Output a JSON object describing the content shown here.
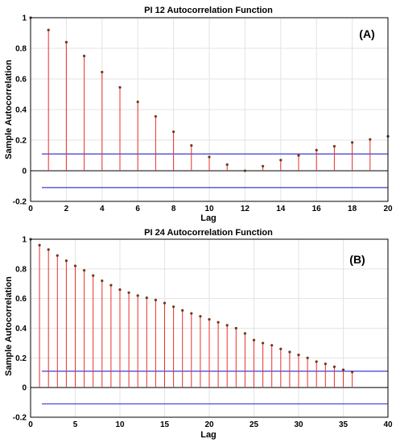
{
  "chart_data": [
    {
      "type": "stem",
      "title": "PI 12 Autocorrelation Function",
      "panel_label": "(A)",
      "xlabel": "Lag",
      "ylabel": "Sample Autocorrelation",
      "xlim": [
        0,
        20
      ],
      "ylim": [
        -0.2,
        1
      ],
      "xticks": [
        0,
        2,
        4,
        6,
        8,
        10,
        12,
        14,
        16,
        18,
        20
      ],
      "yticks": [
        -0.2,
        0,
        0.2,
        0.4,
        0.6,
        0.8,
        1
      ],
      "grid": true,
      "confidence_bounds": [
        0.11,
        -0.11
      ],
      "stem_color": "#e8302a",
      "marker_color": "#6b3a1a",
      "bound_color": "#3b3bd6",
      "lags": [
        0,
        1,
        2,
        3,
        4,
        5,
        6,
        7,
        8,
        9,
        10,
        11,
        12,
        13,
        14,
        15,
        16,
        17,
        18,
        19,
        20
      ],
      "values": [
        1.0,
        0.92,
        0.84,
        0.75,
        0.645,
        0.545,
        0.45,
        0.355,
        0.255,
        0.165,
        0.09,
        0.04,
        0.0,
        0.03,
        0.07,
        0.1,
        0.135,
        0.16,
        0.185,
        0.205,
        0.225
      ]
    },
    {
      "type": "stem",
      "title": "PI 24 Autocorrelation Function",
      "panel_label": "(B)",
      "xlabel": "Lag",
      "ylabel": "Sample Autocorrelation",
      "xlim": [
        0,
        40
      ],
      "ylim": [
        -0.2,
        1
      ],
      "xticks": [
        0,
        5,
        10,
        15,
        20,
        25,
        30,
        35,
        40
      ],
      "yticks": [
        -0.2,
        0,
        0.2,
        0.4,
        0.6,
        0.8,
        1
      ],
      "grid": true,
      "confidence_bounds": [
        0.11,
        -0.11
      ],
      "stem_color": "#e8302a",
      "marker_color": "#6b3a1a",
      "bound_color": "#3b3bd6",
      "lags": [
        0,
        1,
        2,
        3,
        4,
        5,
        6,
        7,
        8,
        9,
        10,
        11,
        12,
        13,
        14,
        15,
        16,
        17,
        18,
        19,
        20,
        21,
        22,
        23,
        24,
        25,
        26,
        27,
        28,
        29,
        30,
        31,
        32,
        33,
        34,
        35,
        36
      ],
      "values": [
        1.0,
        0.96,
        0.93,
        0.89,
        0.855,
        0.82,
        0.79,
        0.755,
        0.72,
        0.69,
        0.66,
        0.64,
        0.62,
        0.605,
        0.59,
        0.57,
        0.545,
        0.52,
        0.5,
        0.48,
        0.46,
        0.44,
        0.42,
        0.4,
        0.365,
        0.32,
        0.3,
        0.285,
        0.26,
        0.24,
        0.22,
        0.2,
        0.175,
        0.16,
        0.14,
        0.12,
        0.105
      ]
    }
  ]
}
